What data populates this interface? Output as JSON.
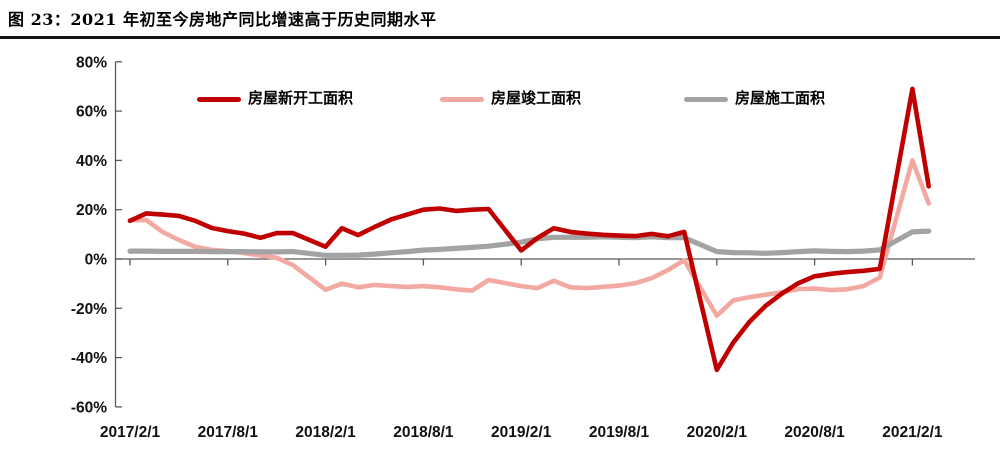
{
  "figure": {
    "title": "图 23：2021 年初至今房地产同比增速高于历史同期水平"
  },
  "chart_data": {
    "type": "line",
    "title": "2021 年初至今房地产同比增速高于历史同期水平",
    "grid": false,
    "legend_position": "top",
    "ylim": [
      -60,
      80
    ],
    "y_tick_labels": [
      "80%",
      "60%",
      "40%",
      "20%",
      "0%",
      "-20%",
      "-40%",
      "-60%"
    ],
    "x_tick_labels": [
      "2017/2/1",
      "2017/8/1",
      "2018/2/1",
      "2018/8/1",
      "2019/2/1",
      "2019/8/1",
      "2020/2/1",
      "2020/8/1",
      "2021/2/1"
    ],
    "x": [
      "2017/2",
      "2017/3",
      "2017/4",
      "2017/5",
      "2017/6",
      "2017/7",
      "2017/8",
      "2017/9",
      "2017/10",
      "2017/11",
      "2017/12",
      "2018/2",
      "2018/3",
      "2018/4",
      "2018/5",
      "2018/6",
      "2018/7",
      "2018/8",
      "2018/9",
      "2018/10",
      "2018/11",
      "2018/12",
      "2019/2",
      "2019/3",
      "2019/4",
      "2019/5",
      "2019/6",
      "2019/7",
      "2019/8",
      "2019/9",
      "2019/10",
      "2019/11",
      "2019/12",
      "2020/2",
      "2020/3",
      "2020/4",
      "2020/5",
      "2020/6",
      "2020/7",
      "2020/8",
      "2020/9",
      "2020/10",
      "2020/11",
      "2020/12",
      "2021/2",
      "2021/3"
    ],
    "series": [
      {
        "id": "new-starts",
        "name": "房屋新开工面积",
        "color": "#c00000",
        "width": 4.6,
        "z": 3,
        "values": [
          15.5,
          18.5,
          18,
          17.5,
          15.5,
          12.6,
          11.3,
          10.3,
          8.6,
          10.5,
          10.5,
          5,
          12.5,
          9.7,
          13,
          16,
          18,
          20,
          20.5,
          19.5,
          20,
          20.3,
          3.5,
          8.5,
          12.5,
          11,
          10.3,
          9.8,
          9.5,
          9.3,
          10.2,
          9.2,
          11,
          -45,
          -34,
          -25.5,
          -19,
          -14,
          -9.8,
          -7,
          -6,
          -5.3,
          -4.8,
          -4,
          69,
          29.5
        ]
      },
      {
        "id": "completions",
        "name": "房屋竣工面积",
        "color": "#f2a9a2",
        "width": 4.6,
        "z": 1,
        "values": [
          15.8,
          15.8,
          11,
          7.7,
          5,
          3.7,
          3.2,
          2.4,
          1.4,
          0.5,
          -2.5,
          -12.5,
          -10,
          -11.5,
          -10.5,
          -11,
          -11.3,
          -11,
          -11.5,
          -12.3,
          -12.8,
          -8.5,
          -11,
          -11.8,
          -8.8,
          -11.5,
          -11.8,
          -11.3,
          -10.8,
          -9.8,
          -7.8,
          -4.5,
          -0.5,
          -23,
          -16.8,
          -15.5,
          -14.5,
          -13.5,
          -12.2,
          -12,
          -12.6,
          -12.3,
          -11,
          -7.5,
          40,
          22.5
        ]
      },
      {
        "id": "under-construction",
        "name": "房屋施工面积",
        "color": "#a3a3a3",
        "width": 5.2,
        "z": 2,
        "values": [
          3.2,
          3.2,
          3.1,
          3.1,
          3.1,
          3,
          3,
          3,
          2.9,
          2.9,
          3,
          1.5,
          1.5,
          1.6,
          2,
          2.5,
          3,
          3.6,
          3.9,
          4.3,
          4.7,
          5.2,
          6.8,
          8.2,
          8.8,
          8.8,
          8.8,
          9,
          8.8,
          8.7,
          9,
          8.7,
          8.7,
          3,
          2.6,
          2.5,
          2.3,
          2.6,
          3,
          3.3,
          3.1,
          3,
          3.2,
          3.7,
          11,
          11.3
        ]
      }
    ]
  }
}
